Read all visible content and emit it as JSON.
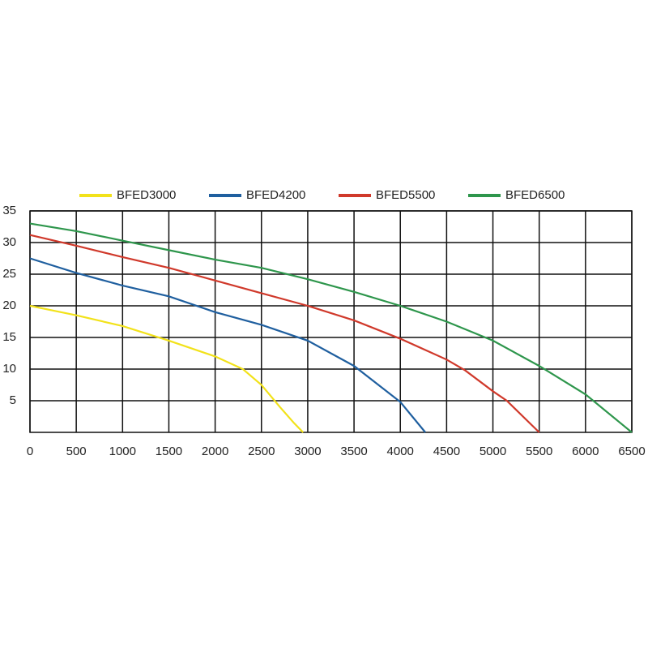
{
  "chart_data": {
    "type": "line",
    "series": [
      {
        "name": "BFED3000",
        "color": "#f2e21a",
        "x": [
          0,
          500,
          1000,
          1500,
          2000,
          2300,
          2500,
          2700,
          2850,
          2950
        ],
        "values": [
          20,
          18.5,
          16.8,
          14.5,
          12,
          10,
          7.5,
          4,
          1.5,
          0
        ]
      },
      {
        "name": "BFED4200",
        "color": "#1f5f9f",
        "x": [
          0,
          500,
          1000,
          1500,
          2000,
          2500,
          3000,
          3500,
          4000,
          4270
        ],
        "values": [
          27.5,
          25.2,
          23.2,
          21.5,
          19,
          17,
          14.5,
          10.5,
          4.8,
          0
        ]
      },
      {
        "name": "BFED5500",
        "color": "#d0392b",
        "x": [
          0,
          500,
          1000,
          1500,
          2000,
          2500,
          3000,
          3500,
          4000,
          4500,
          4700,
          5000,
          5150,
          5500
        ],
        "values": [
          31.2,
          29.5,
          27.7,
          26,
          24,
          22,
          20,
          17.7,
          14.8,
          11.5,
          9.8,
          6.5,
          5,
          0
        ]
      },
      {
        "name": "BFED6500",
        "color": "#2e964c",
        "x": [
          0,
          500,
          1000,
          1500,
          2000,
          2500,
          3000,
          3500,
          4000,
          4500,
          5000,
          5500,
          6000,
          6500
        ],
        "values": [
          33,
          31.8,
          30.3,
          28.8,
          27.3,
          26,
          24.2,
          22.2,
          20,
          17.5,
          14.5,
          10.5,
          6,
          0
        ]
      }
    ],
    "xlim": [
      0,
      6500
    ],
    "xticks": [
      0,
      500,
      1000,
      1500,
      2000,
      2500,
      3000,
      3500,
      4000,
      4500,
      5000,
      5500,
      6000,
      6500
    ],
    "ylim": [
      0,
      35
    ],
    "yticks": [
      5,
      10,
      15,
      20,
      25,
      30,
      35
    ],
    "grid": true,
    "legend": "top"
  }
}
